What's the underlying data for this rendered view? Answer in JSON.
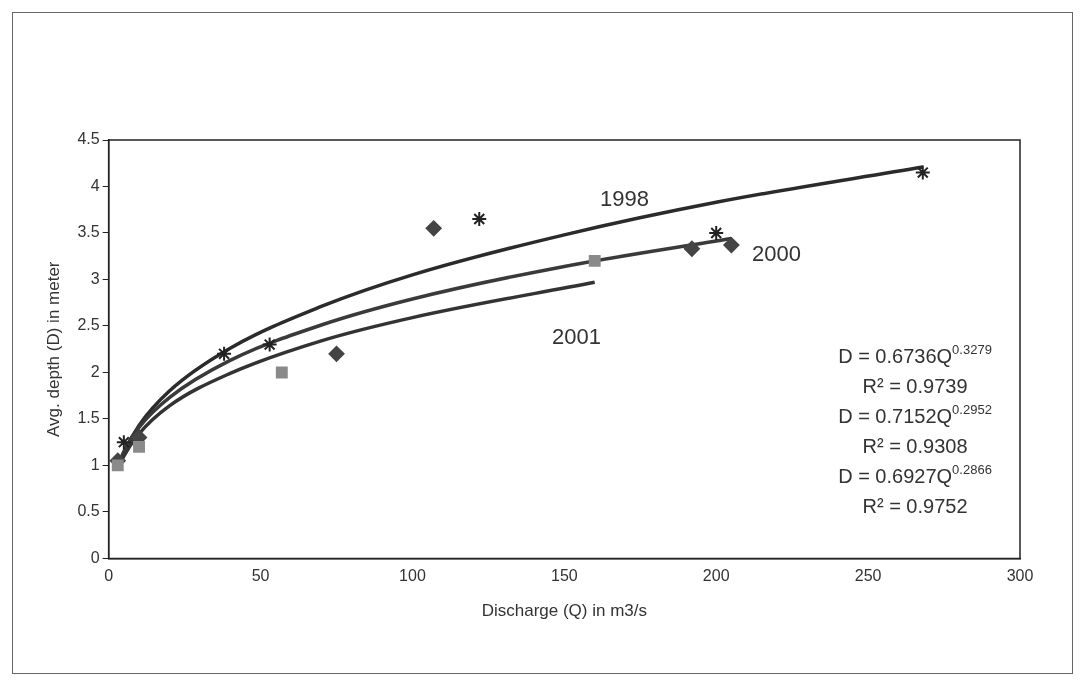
{
  "chart_data": {
    "type": "scatter",
    "xlabel": "Discharge (Q) in m3/s",
    "ylabel": "Avg. depth (D) in meter",
    "xlim": [
      0,
      300
    ],
    "xticks": [
      0,
      50,
      100,
      150,
      200,
      250,
      300
    ],
    "ylim": [
      0,
      4.5
    ],
    "yticks": [
      0,
      0.5,
      1,
      1.5,
      2,
      2.5,
      3,
      3.5,
      4,
      4.5
    ],
    "grid": false,
    "legend": false,
    "series": [
      {
        "type": "line",
        "color": "#2b2b2b",
        "marker": "none",
        "x": [
          3,
          5,
          10,
          20,
          40,
          70,
          100,
          150,
          200,
          268
        ],
        "values": [
          0.97,
          1.14,
          1.43,
          1.8,
          2.26,
          2.71,
          3.05,
          3.48,
          3.83,
          4.21
        ]
      },
      {
        "type": "line",
        "color": "#3a3a3a",
        "marker": "none",
        "x": [
          3,
          5,
          10,
          20,
          40,
          70,
          100,
          150,
          205
        ],
        "values": [
          0.99,
          1.15,
          1.41,
          1.73,
          2.13,
          2.51,
          2.79,
          3.14,
          3.44
        ]
      },
      {
        "type": "line",
        "color": "#333333",
        "marker": "none",
        "x": [
          3,
          5,
          10,
          20,
          40,
          70,
          100,
          160
        ],
        "values": [
          0.95,
          1.1,
          1.34,
          1.64,
          1.99,
          2.34,
          2.59,
          2.97
        ]
      },
      {
        "color": "#222222",
        "marker": "cross",
        "x": [
          5,
          38,
          53,
          122,
          200,
          268
        ],
        "values": [
          1.25,
          2.2,
          2.3,
          3.65,
          3.5,
          4.15
        ]
      },
      {
        "color": "#444444",
        "marker": "diamond",
        "x": [
          3,
          10,
          75,
          107,
          192,
          205
        ],
        "values": [
          1.05,
          1.3,
          2.2,
          3.55,
          3.33,
          3.37
        ]
      },
      {
        "color": "#8a8a8a",
        "marker": "square",
        "x": [
          3,
          10,
          57,
          160
        ],
        "values": [
          1.0,
          1.2,
          2.0,
          3.2
        ]
      }
    ],
    "annotations": [
      "1998",
      "2000",
      "2001",
      "D = 0.6736Q$^{0.3279}$",
      "R² = 0.9739",
      "D = 0.7152Q$^{0.2952}$",
      "R² = 0.9308",
      "D = 0.6927Q$^{0.2866}$",
      "R² = 0.9752"
    ]
  }
}
